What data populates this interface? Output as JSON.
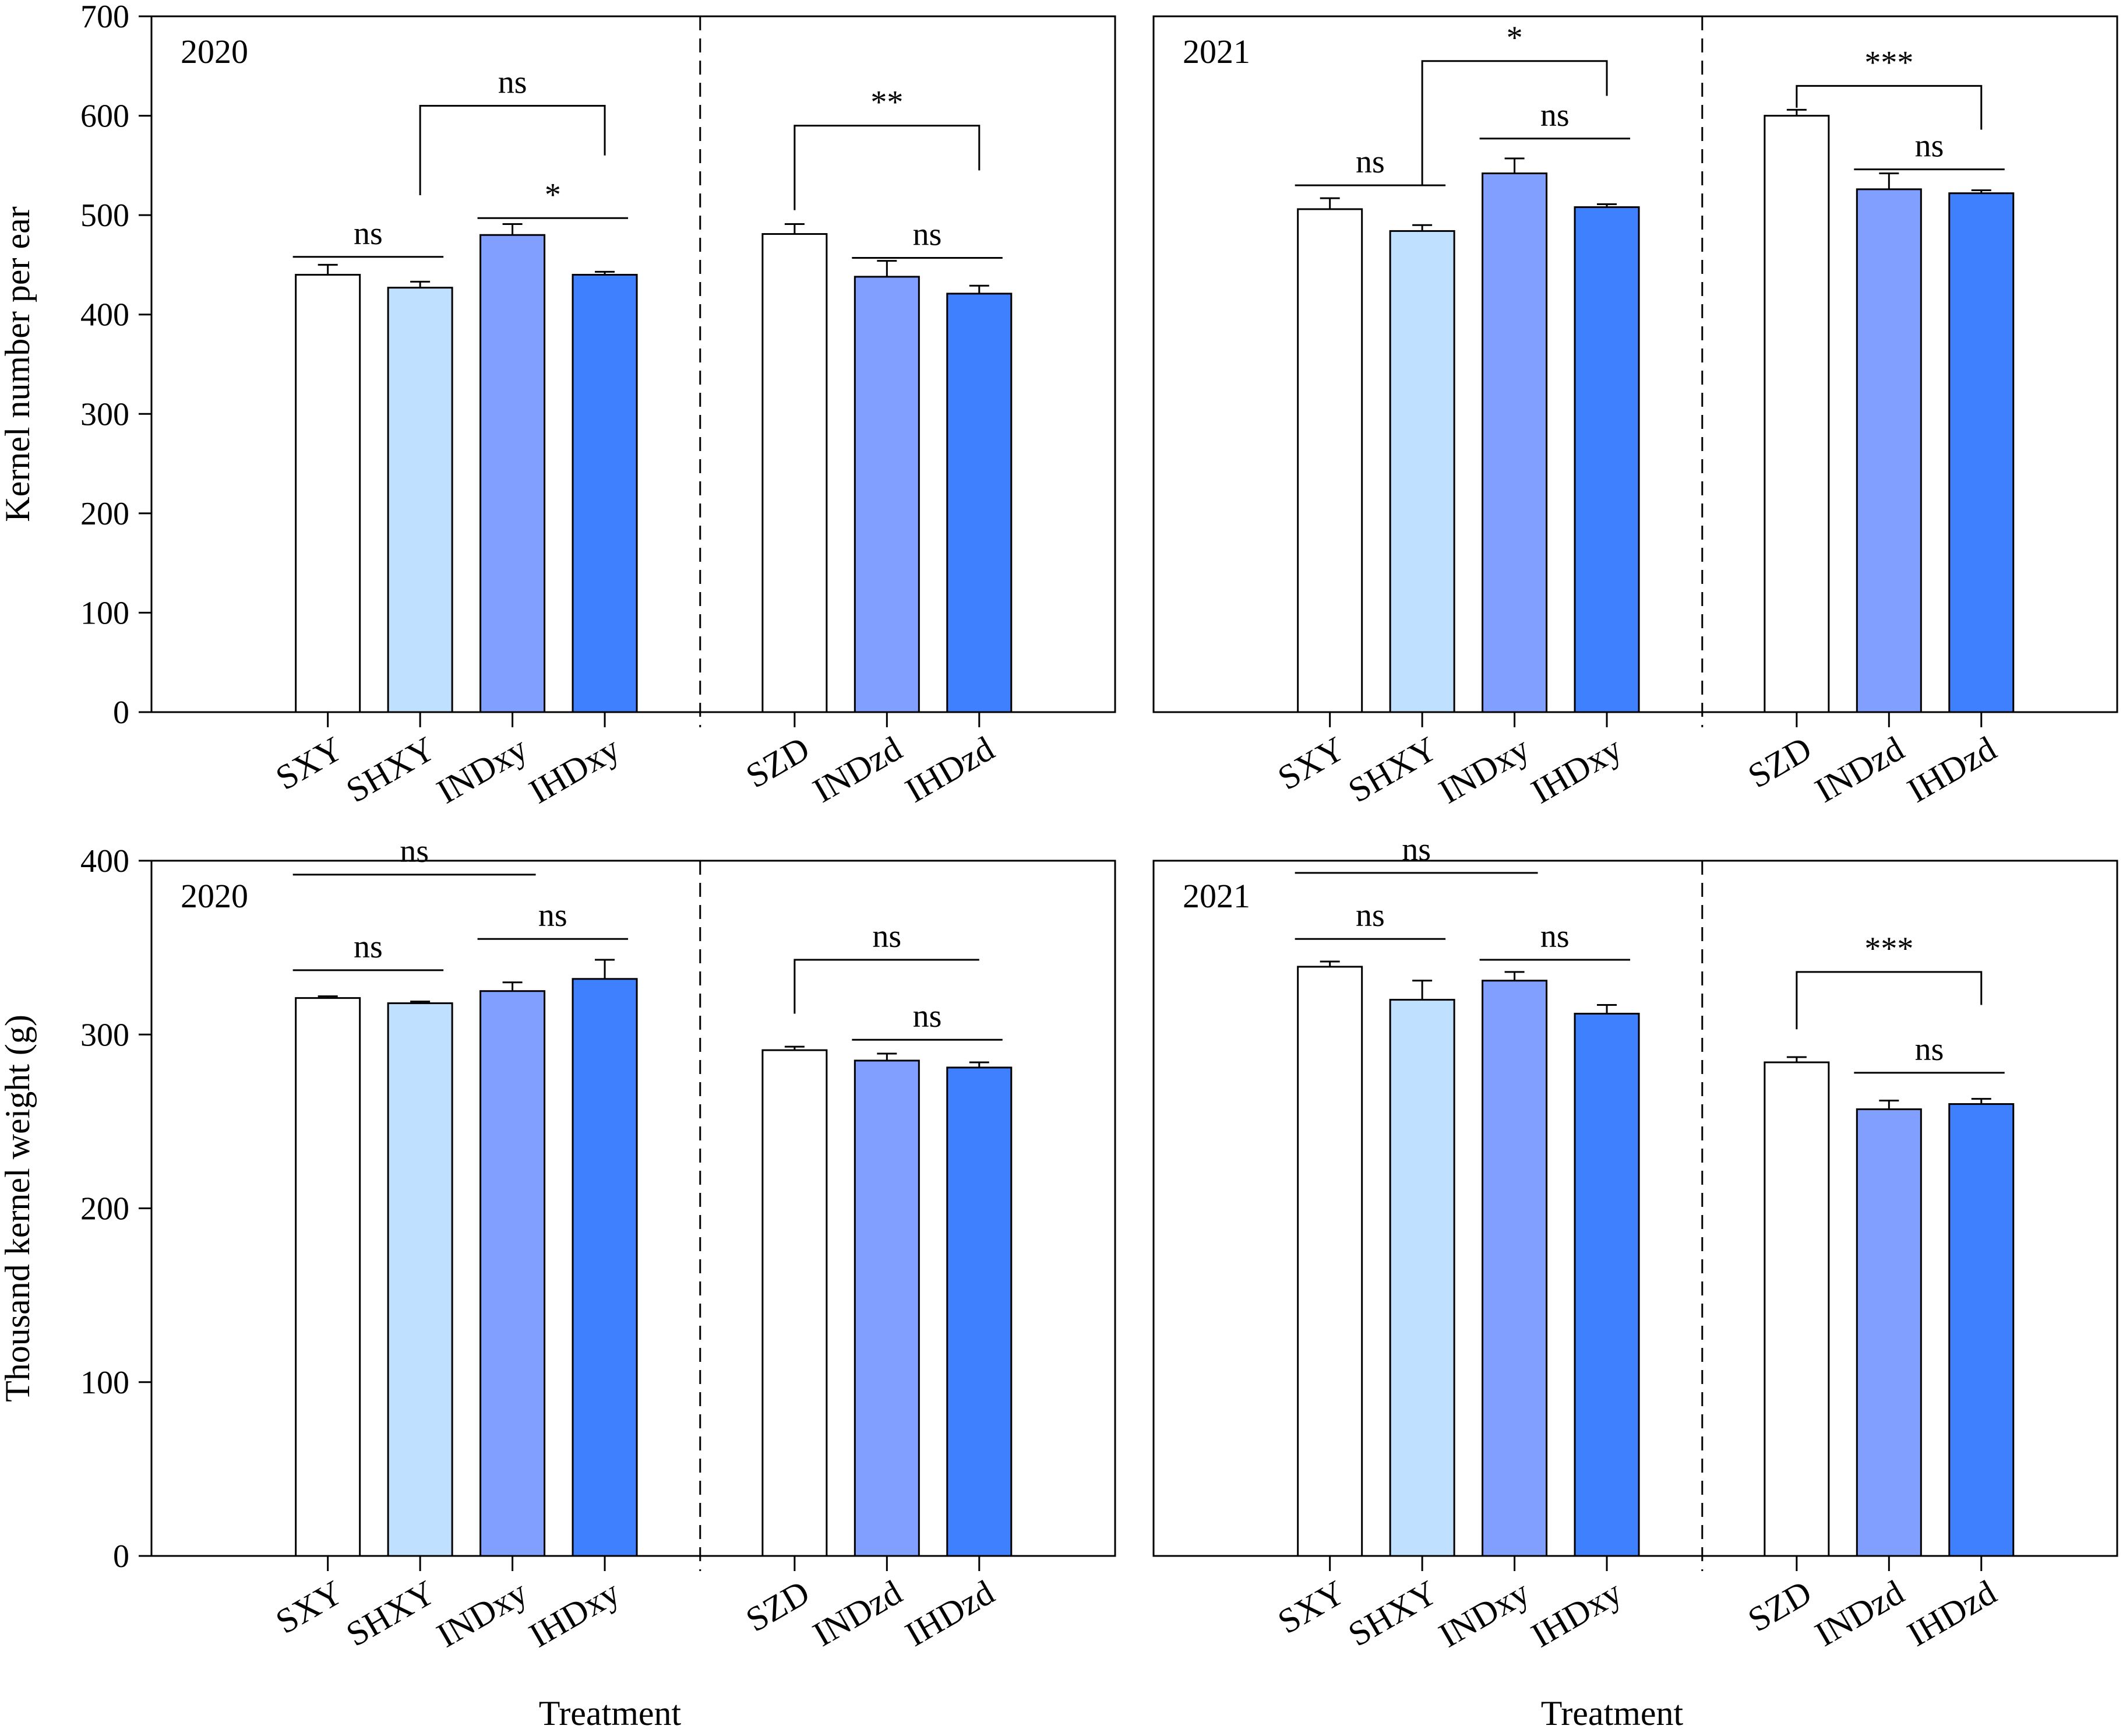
{
  "colors": {
    "S": "#ffffff",
    "SH": "#bfe0ff",
    "IND": "#809ffe",
    "IHD": "#3f80ff"
  },
  "chart_data": [
    {
      "type": "bar",
      "year": "2020",
      "ylabel": "Kernel number per ear",
      "xlabel": "",
      "ylim": [
        0,
        700
      ],
      "yticks": [
        "0",
        "100",
        "200",
        "300",
        "400",
        "500",
        "600",
        "700"
      ],
      "categories": [
        "SXY",
        "SHXY",
        "INDxy",
        "IHDxy",
        "SZD",
        "INDzd",
        "IHDzd"
      ],
      "values": [
        440,
        427,
        480,
        440,
        481,
        438,
        421
      ],
      "errors": [
        10,
        6,
        11,
        3,
        10,
        16,
        8
      ],
      "colorkeys": [
        "S",
        "SH",
        "IND",
        "IHD",
        "S",
        "IND",
        "IHD"
      ],
      "significance": [
        {
          "label": "ns",
          "kind": "line",
          "from": 0,
          "to": 1,
          "y": 458
        },
        {
          "label": "ns",
          "kind": "bracket",
          "from": 1,
          "to": 3,
          "y": 610,
          "drop_from": 520,
          "drop_to": 560
        },
        {
          "label": "*",
          "kind": "line",
          "from": 2,
          "to": 3,
          "y": 497
        },
        {
          "label": "**",
          "kind": "bracket",
          "from": 4,
          "to": 6,
          "y": 590,
          "drop_from": 505,
          "drop_to": 545
        },
        {
          "label": "ns",
          "kind": "line",
          "from": 5,
          "to": 6,
          "y": 457
        }
      ]
    },
    {
      "type": "bar",
      "year": "2021",
      "ylabel": "",
      "xlabel": "",
      "ylim": [
        0,
        700
      ],
      "yticks": [],
      "categories": [
        "SXY",
        "SHXY",
        "INDxy",
        "IHDxy",
        "SZD",
        "INDzd",
        "IHDzd"
      ],
      "values": [
        506,
        484,
        542,
        508,
        600,
        526,
        522
      ],
      "errors": [
        11,
        6,
        15,
        3,
        6,
        16,
        3
      ],
      "colorkeys": [
        "S",
        "SH",
        "IND",
        "IHD",
        "S",
        "IND",
        "IHD"
      ],
      "significance": [
        {
          "label": "ns",
          "kind": "line",
          "from": 0,
          "to": 1,
          "y": 530
        },
        {
          "label": "*",
          "kind": "bracket",
          "from": 1,
          "to": 3,
          "y": 655,
          "drop_from": 530,
          "drop_to": 620
        },
        {
          "label": "ns",
          "kind": "line",
          "from": 2,
          "to": 3,
          "y": 577
        },
        {
          "label": "***",
          "kind": "bracket",
          "from": 4,
          "to": 6,
          "y": 630,
          "drop_from": 608,
          "drop_to": 586
        },
        {
          "label": "ns",
          "kind": "line",
          "from": 5,
          "to": 6,
          "y": 546
        }
      ]
    },
    {
      "type": "bar",
      "year": "2020",
      "ylabel": "Thousand kernel weight (g)",
      "xlabel": "Treatment",
      "ylim": [
        0,
        400
      ],
      "yticks": [
        "0",
        "100",
        "200",
        "300",
        "400"
      ],
      "categories": [
        "SXY",
        "SHXY",
        "INDxy",
        "IHDxy",
        "SZD",
        "INDzd",
        "IHDzd"
      ],
      "values": [
        321,
        318,
        325,
        332,
        291,
        285,
        281
      ],
      "errors": [
        1,
        1,
        5,
        11,
        2,
        4,
        3
      ],
      "colorkeys": [
        "S",
        "SH",
        "IND",
        "IHD",
        "S",
        "IND",
        "IHD"
      ],
      "significance": [
        {
          "label": "ns",
          "kind": "line",
          "from": 0,
          "to": 1,
          "y": 337
        },
        {
          "label": "ns",
          "kind": "line",
          "from": 0,
          "to": 2,
          "y": 392
        },
        {
          "label": "ns",
          "kind": "line",
          "from": 2,
          "to": 3,
          "y": 355
        },
        {
          "label": "ns",
          "kind": "bracket",
          "from": 4,
          "to": 6,
          "y": 343,
          "drop_from": 312,
          "drop_to": 343
        },
        {
          "label": "ns",
          "kind": "line",
          "from": 5,
          "to": 6,
          "y": 297
        }
      ]
    },
    {
      "type": "bar",
      "year": "2021",
      "ylabel": "",
      "xlabel": "Treatment",
      "ylim": [
        0,
        400
      ],
      "yticks": [],
      "categories": [
        "SXY",
        "SHXY",
        "INDxy",
        "IHDxy",
        "SZD",
        "INDzd",
        "IHDzd"
      ],
      "values": [
        339,
        320,
        331,
        312,
        284,
        257,
        260
      ],
      "errors": [
        3,
        11,
        5,
        5,
        3,
        5,
        3
      ],
      "colorkeys": [
        "S",
        "SH",
        "IND",
        "IHD",
        "S",
        "IND",
        "IHD"
      ],
      "significance": [
        {
          "label": "ns",
          "kind": "line",
          "from": 0,
          "to": 1,
          "y": 355
        },
        {
          "label": "ns",
          "kind": "line",
          "from": 0,
          "to": 2,
          "y": 393
        },
        {
          "label": "ns",
          "kind": "line",
          "from": 2,
          "to": 3,
          "y": 343
        },
        {
          "label": "***",
          "kind": "bracket",
          "from": 4,
          "to": 6,
          "y": 336,
          "drop_from": 303,
          "drop_to": 317
        },
        {
          "label": "ns",
          "kind": "line",
          "from": 5,
          "to": 6,
          "y": 278
        }
      ]
    }
  ]
}
